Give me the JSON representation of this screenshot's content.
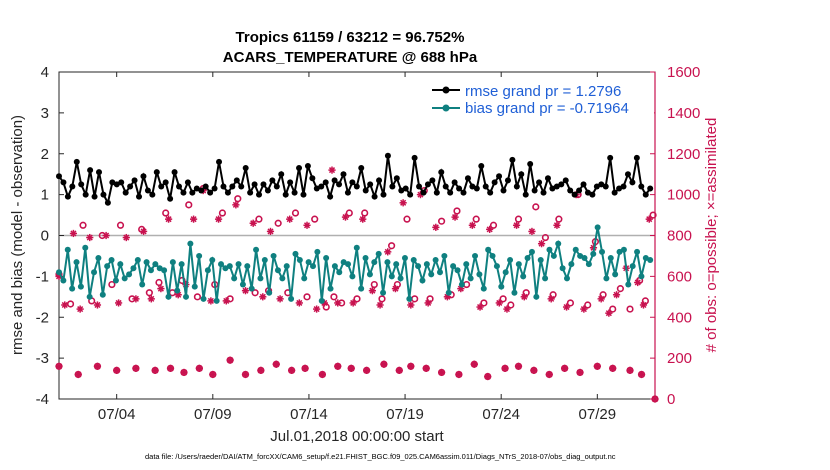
{
  "chart_data": {
    "type": "line",
    "title": "Tropics 61159 / 63212 = 96.752%",
    "subtitle": "ACARS_TEMPERATURE @ 688 hPa",
    "xlabel": "Jul.01,2018 00:00:00 start",
    "ylabel": "rmse and bias (model - observation)",
    "ylabel_right": "# of obs: o=possible; ×=assimilated",
    "x_tick_labels": [
      "07/04",
      "07/09",
      "07/14",
      "07/19",
      "07/24",
      "07/29"
    ],
    "x_tick_days": [
      4,
      9,
      14,
      19,
      24,
      29
    ],
    "xlim_days": [
      1,
      32
    ],
    "ylim": [
      -4,
      4
    ],
    "yticks": [
      -4,
      -3,
      -2,
      -1,
      0,
      1,
      2,
      3,
      4
    ],
    "ylim_right": [
      0,
      1600
    ],
    "yticks_right": [
      0,
      200,
      400,
      600,
      800,
      1000,
      1200,
      1400,
      1600
    ],
    "legend": [
      {
        "name": "rmse grand pr = 1.2796",
        "color": "#000000"
      },
      {
        "name": "bias grand pr = -0.71964",
        "color": "#0f8080"
      }
    ],
    "series": [
      {
        "name": "rmse",
        "color": "#000000",
        "values": [
          1.45,
          1.3,
          0.95,
          1.2,
          1.8,
          1.25,
          1.0,
          1.6,
          0.95,
          1.55,
          1.0,
          0.8,
          1.3,
          1.25,
          1.3,
          1.05,
          1.2,
          1.35,
          0.95,
          1.45,
          1.1,
          1.0,
          1.55,
          1.2,
          1.3,
          0.9,
          1.55,
          1.2,
          1.05,
          1.3,
          1.05,
          1.15,
          1.1,
          1.2,
          1.05,
          1.15,
          1.8,
          1.2,
          1.05,
          1.2,
          1.35,
          1.2,
          1.65,
          1.05,
          1.25,
          1.0,
          1.25,
          1.1,
          1.35,
          1.2,
          1.5,
          1.0,
          1.3,
          1.05,
          1.65,
          1.0,
          1.7,
          1.4,
          1.15,
          1.2,
          1.3,
          0.95,
          1.35,
          1.25,
          1.5,
          1.05,
          1.3,
          1.2,
          1.65,
          1.1,
          1.25,
          0.95,
          1.35,
          1.0,
          1.95,
          1.2,
          1.4,
          1.1,
          1.15,
          1.0,
          1.9,
          1.2,
          1.05,
          1.25,
          1.35,
          1.05,
          1.55,
          1.2,
          1.05,
          1.3,
          1.15,
          1.05,
          1.4,
          1.2,
          1.15,
          1.7,
          1.2,
          1.05,
          1.3,
          1.45,
          1.1,
          1.35,
          1.85,
          1.2,
          1.5,
          1.0,
          1.75,
          1.1,
          1.3,
          1.05,
          1.4,
          1.15,
          1.2,
          1.25,
          1.35,
          1.1,
          1.0,
          1.1,
          1.25,
          1.05,
          1.0,
          1.2,
          1.25,
          1.2,
          1.9,
          1.05,
          1.15,
          1.2,
          1.5,
          1.3,
          1.9,
          1.2,
          1.0,
          1.15
        ]
      },
      {
        "name": "bias",
        "color": "#0f8080",
        "values": [
          -0.9,
          -1.1,
          -0.35,
          -1.3,
          -0.65,
          -1.25,
          -0.3,
          -1.5,
          -0.9,
          -0.55,
          -1.45,
          -0.75,
          -0.6,
          -1.1,
          -0.7,
          -1.05,
          -0.95,
          -0.8,
          -0.6,
          -1.2,
          -0.65,
          -0.85,
          -0.7,
          -0.8,
          -0.85,
          -1.5,
          -0.65,
          -1.35,
          -0.7,
          -1.5,
          -0.2,
          -1.25,
          -0.5,
          -1.55,
          -0.85,
          -0.6,
          -1.6,
          -0.7,
          -0.8,
          -0.75,
          -1.05,
          -0.7,
          -1.2,
          -0.75,
          -1.3,
          -0.35,
          -1.05,
          -0.6,
          -1.4,
          -0.5,
          -0.85,
          -1.05,
          -0.75,
          -1.55,
          -0.45,
          -0.6,
          -1.05,
          -0.65,
          -0.75,
          -0.4,
          -1.6,
          -0.55,
          -1.3,
          -0.75,
          -0.9,
          -0.65,
          -0.7,
          -1.0,
          -0.3,
          -1.3,
          -0.55,
          -0.95,
          -0.65,
          -0.45,
          -1.4,
          -0.65,
          -1.0,
          -0.7,
          -1.05,
          -0.55,
          -1.55,
          -0.6,
          -0.75,
          -1.1,
          -0.7,
          -0.95,
          -0.6,
          -0.9,
          -0.5,
          -1.4,
          -0.75,
          -0.85,
          -1.2,
          -0.7,
          -1.05,
          -0.5,
          -0.95,
          -1.3,
          -0.35,
          -0.5,
          -0.75,
          -1.25,
          -0.9,
          -0.6,
          -1.4,
          -0.7,
          -1.0,
          -0.55,
          -0.4,
          -1.5,
          -0.6,
          -1.05,
          -0.35,
          -0.5,
          -0.2,
          -0.8,
          -1.05,
          -0.7,
          -0.35,
          -0.5,
          -0.55,
          -0.7,
          -0.45,
          0.2,
          -0.4,
          -1.05,
          -0.55,
          -0.95,
          -0.4,
          -0.35,
          -1.2,
          -0.75,
          -0.4,
          -1.0,
          -0.55,
          -0.6
        ]
      }
    ],
    "obs_possible": [
      [
        1.0,
        610
      ],
      [
        1.6,
        465
      ],
      [
        2.25,
        850
      ],
      [
        2.7,
        480
      ],
      [
        3.25,
        800
      ],
      [
        3.75,
        560
      ],
      [
        4.2,
        850
      ],
      [
        4.8,
        490
      ],
      [
        5.3,
        830
      ],
      [
        5.7,
        520
      ],
      [
        6.2,
        570
      ],
      [
        6.55,
        910
      ],
      [
        6.9,
        520
      ],
      [
        7.4,
        580
      ],
      [
        7.75,
        950
      ],
      [
        8.2,
        500
      ],
      [
        8.5,
        1030
      ],
      [
        9.1,
        560
      ],
      [
        9.5,
        910
      ],
      [
        9.9,
        490
      ],
      [
        10.3,
        980
      ],
      [
        11.2,
        520
      ],
      [
        11.4,
        880
      ],
      [
        11.9,
        530
      ],
      [
        12.4,
        860
      ],
      [
        12.9,
        520
      ],
      [
        13.3,
        910
      ],
      [
        13.9,
        500
      ],
      [
        14.3,
        880
      ],
      [
        14.9,
        450
      ],
      [
        15.3,
        500
      ],
      [
        15.7,
        470
      ],
      [
        16.1,
        910
      ],
      [
        16.5,
        490
      ],
      [
        16.9,
        910
      ],
      [
        17.4,
        560
      ],
      [
        17.8,
        490
      ],
      [
        18.3,
        750
      ],
      [
        18.6,
        560
      ],
      [
        19.1,
        880
      ],
      [
        19.5,
        490
      ],
      [
        20.0,
        1020
      ],
      [
        20.3,
        490
      ],
      [
        20.9,
        870
      ],
      [
        21.4,
        510
      ],
      [
        21.7,
        920
      ],
      [
        22.2,
        560
      ],
      [
        22.7,
        880
      ],
      [
        23.1,
        470
      ],
      [
        23.6,
        850
      ],
      [
        24.1,
        490
      ],
      [
        24.5,
        460
      ],
      [
        24.9,
        880
      ],
      [
        25.3,
        520
      ],
      [
        25.8,
        940
      ],
      [
        26.3,
        790
      ],
      [
        26.7,
        510
      ],
      [
        27.0,
        880
      ],
      [
        27.6,
        470
      ],
      [
        28.0,
        1000
      ],
      [
        28.5,
        460
      ],
      [
        28.9,
        770
      ],
      [
        29.3,
        510
      ],
      [
        29.8,
        440
      ],
      [
        30.2,
        540
      ],
      [
        30.7,
        440
      ],
      [
        31.2,
        580
      ],
      [
        31.5,
        480
      ],
      [
        31.9,
        900
      ]
    ],
    "obs_assimilated": [
      [
        1.0,
        600
      ],
      [
        1.3,
        460
      ],
      [
        1.75,
        810
      ],
      [
        2.1,
        440
      ],
      [
        2.6,
        790
      ],
      [
        3.0,
        460
      ],
      [
        3.45,
        800
      ],
      [
        4.1,
        470
      ],
      [
        4.5,
        790
      ],
      [
        5.0,
        490
      ],
      [
        5.4,
        820
      ],
      [
        5.8,
        490
      ],
      [
        6.3,
        540
      ],
      [
        6.7,
        880
      ],
      [
        7.2,
        510
      ],
      [
        7.6,
        560
      ],
      [
        8.0,
        880
      ],
      [
        8.5,
        1020
      ],
      [
        8.9,
        480
      ],
      [
        9.3,
        880
      ],
      [
        9.7,
        480
      ],
      [
        10.2,
        950
      ],
      [
        10.7,
        530
      ],
      [
        11.1,
        860
      ],
      [
        11.6,
        500
      ],
      [
        12.0,
        820
      ],
      [
        12.5,
        490
      ],
      [
        13.0,
        880
      ],
      [
        13.5,
        470
      ],
      [
        13.9,
        850
      ],
      [
        14.4,
        440
      ],
      [
        14.8,
        470
      ],
      [
        15.2,
        1120
      ],
      [
        15.5,
        470
      ],
      [
        15.9,
        890
      ],
      [
        16.3,
        470
      ],
      [
        16.8,
        880
      ],
      [
        17.3,
        530
      ],
      [
        17.7,
        460
      ],
      [
        18.1,
        720
      ],
      [
        18.5,
        540
      ],
      [
        18.9,
        960
      ],
      [
        19.3,
        460
      ],
      [
        19.8,
        1000
      ],
      [
        20.2,
        470
      ],
      [
        20.6,
        840
      ],
      [
        21.2,
        500
      ],
      [
        21.6,
        890
      ],
      [
        21.9,
        540
      ],
      [
        22.5,
        850
      ],
      [
        22.9,
        450
      ],
      [
        23.4,
        830
      ],
      [
        23.9,
        470
      ],
      [
        24.3,
        440
      ],
      [
        24.8,
        850
      ],
      [
        25.2,
        500
      ],
      [
        25.6,
        820
      ],
      [
        26.1,
        760
      ],
      [
        26.6,
        490
      ],
      [
        26.9,
        850
      ],
      [
        27.4,
        450
      ],
      [
        27.9,
        1000
      ],
      [
        28.3,
        440
      ],
      [
        28.8,
        740
      ],
      [
        29.2,
        490
      ],
      [
        29.6,
        420
      ],
      [
        30.0,
        510
      ],
      [
        30.5,
        640
      ],
      [
        31.1,
        570
      ],
      [
        31.4,
        460
      ],
      [
        31.7,
        880
      ]
    ],
    "obs_low": [
      [
        1.0,
        160
      ],
      [
        2.0,
        120
      ],
      [
        3.0,
        160
      ],
      [
        4.0,
        140
      ],
      [
        5.0,
        150
      ],
      [
        6.0,
        140
      ],
      [
        6.8,
        150
      ],
      [
        7.5,
        130
      ],
      [
        8.3,
        150
      ],
      [
        9.0,
        120
      ],
      [
        9.9,
        190
      ],
      [
        10.7,
        120
      ],
      [
        11.5,
        140
      ],
      [
        12.3,
        170
      ],
      [
        13.1,
        140
      ],
      [
        13.8,
        150
      ],
      [
        14.7,
        120
      ],
      [
        15.5,
        160
      ],
      [
        16.2,
        150
      ],
      [
        17.0,
        140
      ],
      [
        17.9,
        170
      ],
      [
        18.7,
        140
      ],
      [
        19.3,
        160
      ],
      [
        20.1,
        150
      ],
      [
        20.9,
        130
      ],
      [
        21.8,
        120
      ],
      [
        22.6,
        170
      ],
      [
        23.3,
        110
      ],
      [
        24.2,
        150
      ],
      [
        24.9,
        160
      ],
      [
        25.7,
        140
      ],
      [
        26.5,
        120
      ],
      [
        27.3,
        150
      ],
      [
        28.1,
        130
      ],
      [
        29.0,
        160
      ],
      [
        29.8,
        150
      ],
      [
        30.7,
        140
      ],
      [
        31.3,
        120
      ],
      [
        32.0,
        0
      ]
    ]
  },
  "footer": {
    "datafile": "data file: /Users/raeder/DAI/ATM_forcXX/CAM6_setup/f.e21.FHIST_BGC.f09_025.CAM6assim.011/Diags_NTrS_2018-07/obs_diag_output.nc"
  },
  "colors": {
    "rmse": "#000000",
    "bias": "#0f8080",
    "obs": "#c8124f",
    "legend_text": "#1f5fd6"
  }
}
